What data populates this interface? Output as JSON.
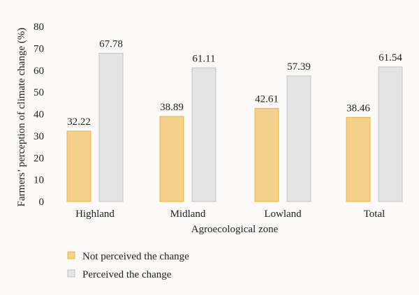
{
  "chart_data": {
    "type": "bar",
    "categories": [
      "Highland",
      "Midland",
      "Lowland",
      "Total"
    ],
    "series": [
      {
        "name": "Not perceived the change",
        "values": [
          32.22,
          38.89,
          42.61,
          38.46
        ],
        "labels": [
          "32.22",
          "38.89",
          "42.61",
          "38.46"
        ],
        "fill": "#f5d08b",
        "stroke": "#e8b73e"
      },
      {
        "name": "Perceived the change",
        "values": [
          67.78,
          61.11,
          57.39,
          61.54
        ],
        "labels": [
          "67.78",
          "61.11",
          "57.39",
          "61.54"
        ],
        "fill": "#e4e4e4",
        "stroke": "#c4c4c4"
      }
    ],
    "xlabel": "Agroecological zone",
    "ylabel": "Farmers’ perception of climate change (%)",
    "ylim": [
      0,
      80
    ],
    "yticks": [
      "0",
      "10",
      "20",
      "30",
      "40",
      "50",
      "60",
      "70",
      "80"
    ],
    "grid": false,
    "legend_position": "bottom-left"
  }
}
